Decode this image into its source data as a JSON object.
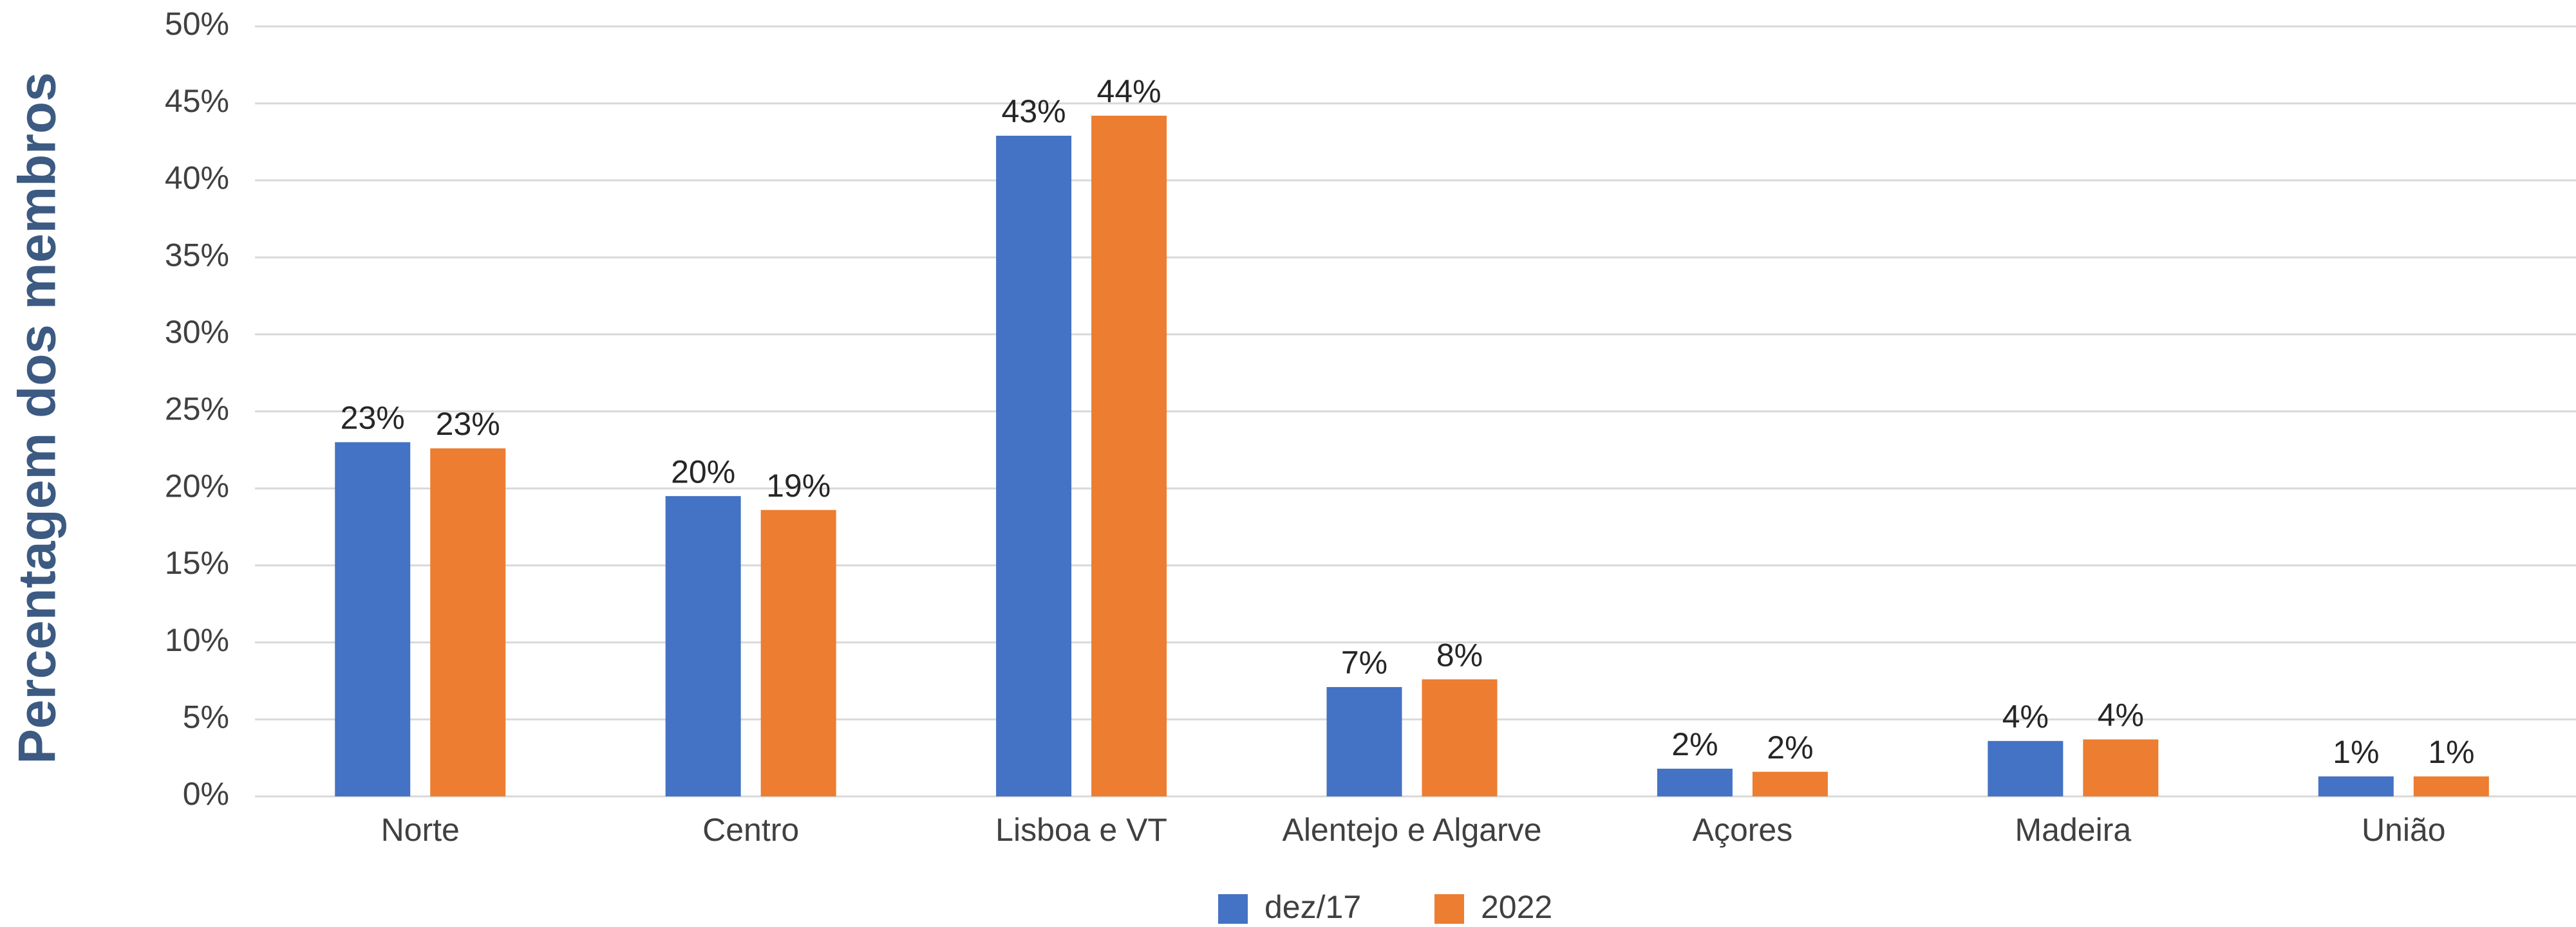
{
  "chart_data": {
    "type": "bar",
    "ylabel": "Percentagem dos membros",
    "categories": [
      "Norte",
      "Centro",
      "Lisboa e VT",
      "Alentejo e Algarve",
      "Açores",
      "Madeira",
      "União"
    ],
    "series": [
      {
        "name": "dez/17",
        "color": "#4472c4",
        "values": [
          23.0,
          19.5,
          42.9,
          7.1,
          1.8,
          3.6,
          1.3
        ],
        "value_labels": [
          "23%",
          "20%",
          "43%",
          "7%",
          "2%",
          "4%",
          "1%"
        ]
      },
      {
        "name": "2022",
        "color": "#ed7d31",
        "values": [
          22.6,
          18.6,
          44.2,
          7.6,
          1.6,
          3.7,
          1.3
        ],
        "value_labels": [
          "23%",
          "19%",
          "44%",
          "8%",
          "2%",
          "4%",
          "1%"
        ]
      }
    ],
    "ylim": [
      0,
      50
    ],
    "yticks": [
      {
        "value": 0,
        "label": "0%"
      },
      {
        "value": 5,
        "label": "5%"
      },
      {
        "value": 10,
        "label": "10%"
      },
      {
        "value": 15,
        "label": "15%"
      },
      {
        "value": 20,
        "label": "20%"
      },
      {
        "value": 25,
        "label": "25%"
      },
      {
        "value": 30,
        "label": "30%"
      },
      {
        "value": 35,
        "label": "35%"
      },
      {
        "value": 40,
        "label": "40%"
      },
      {
        "value": 45,
        "label": "45%"
      },
      {
        "value": 50,
        "label": "50%"
      }
    ],
    "grid": true,
    "legend": "bottom"
  }
}
